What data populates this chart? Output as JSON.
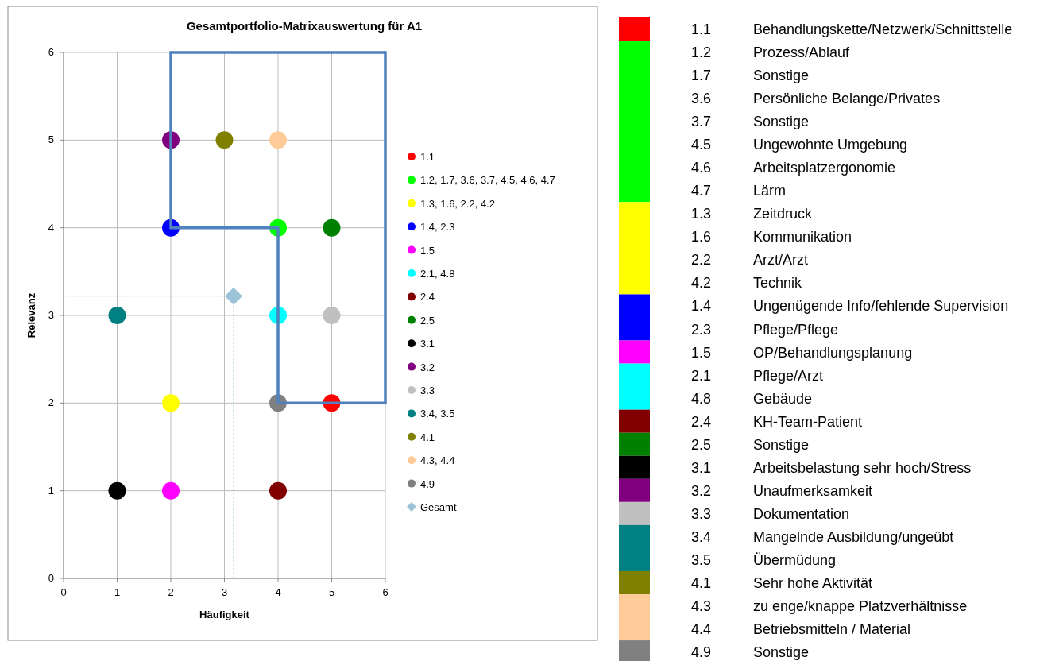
{
  "chart_data": [
    {
      "type": "scatter",
      "title": "Gesamtportfolio-Matrixauswertung für A1",
      "xlabel": "Häufigkeit",
      "ylabel": "Relevanz",
      "xlim": [
        0,
        6
      ],
      "ylim": [
        0,
        6
      ],
      "xticks": [
        0,
        1,
        2,
        3,
        4,
        5,
        6
      ],
      "yticks": [
        0,
        1,
        2,
        3,
        4,
        5,
        6
      ],
      "grid": true,
      "legend": "right",
      "marker": "circle",
      "series": [
        {
          "type": "line",
          "color": "#4f81bd",
          "marker": "none",
          "line_style": "solid",
          "x": [
            2,
            6
          ],
          "values": [
            6,
            6
          ],
          "errors": [
            [
              4,
              6
            ],
            [
              2,
              6
            ]
          ]
        },
        {
          "type": "step",
          "color": "#4f81bd",
          "marker": "none",
          "line_style": "solid",
          "x": [
            2,
            4,
            6
          ],
          "values": [
            4,
            2,
            2
          ]
        },
        {
          "name": "1.1",
          "color": "#ff0000",
          "x": [
            5
          ],
          "values": [
            2
          ]
        },
        {
          "name": "1.2, 1.7, 3.6, 3.7, 4.5, 4.6, 4.7",
          "color": "#00ff00",
          "x": [
            4
          ],
          "values": [
            4
          ]
        },
        {
          "name": "1.3, 1.6, 2.2, 4.2",
          "color": "#ffff00",
          "x": [
            2
          ],
          "values": [
            2
          ]
        },
        {
          "name": "1.4, 2.3",
          "color": "#0000ff",
          "x": [
            2
          ],
          "values": [
            4
          ]
        },
        {
          "name": "1.5",
          "color": "#ff00ff",
          "x": [
            2
          ],
          "values": [
            1
          ]
        },
        {
          "name": "2.1, 4.8",
          "color": "#00ffff",
          "x": [
            4
          ],
          "values": [
            3
          ]
        },
        {
          "name": "2.4",
          "color": "#800000",
          "x": [
            4
          ],
          "values": [
            1
          ]
        },
        {
          "name": "2.5",
          "color": "#008000",
          "x": [
            5
          ],
          "values": [
            4
          ]
        },
        {
          "name": "3.1",
          "color": "#000000",
          "x": [
            1
          ],
          "values": [
            1
          ]
        },
        {
          "name": "3.2",
          "color": "#800080",
          "x": [
            2
          ],
          "values": [
            5
          ]
        },
        {
          "name": "3.3",
          "color": "#c0c0c0",
          "x": [
            5
          ],
          "values": [
            3
          ]
        },
        {
          "name": "3.4, 3.5",
          "color": "#008080",
          "x": [
            1
          ],
          "values": [
            3
          ]
        },
        {
          "name": "4.1",
          "color": "#808000",
          "x": [
            3
          ],
          "values": [
            5
          ]
        },
        {
          "name": "4.3, 4.4",
          "color": "#ffcc99",
          "x": [
            4
          ],
          "values": [
            5
          ]
        },
        {
          "name": "4.9",
          "color": "#808080",
          "x": [
            4
          ],
          "values": [
            2
          ]
        },
        {
          "name": "Gesamt",
          "color": "#9dc3d8",
          "marker": "diamond",
          "x": [
            3.17
          ],
          "values": [
            3.22
          ],
          "errors": [
            [
              0,
              3.22
            ]
          ],
          "xerrors": [
            [
              0,
              3.17
            ]
          ]
        }
      ]
    },
    {
      "type": "other",
      "categories": [
        "1.1",
        "1.2",
        "1.7",
        "3.6",
        "3.7",
        "4.5",
        "4.6",
        "4.7",
        "1.3",
        "1.6",
        "2.2",
        "4.2",
        "1.4",
        "2.3",
        "1.5",
        "2.1",
        "4.8",
        "2.4",
        "2.5",
        "3.1",
        "3.2",
        "3.3",
        "3.4",
        "3.5",
        "4.1",
        "4.3",
        "4.4",
        "4.9"
      ],
      "y2_categories": [
        "Behandlungskette/Netzwerk/Schnittstelle",
        "Prozess/Ablauf",
        "Sonstige",
        "Persönliche Belange/Privates",
        "Sonstige",
        "Ungewohnte Umgebung",
        "Arbeitsplatzergonomie",
        "Lärm",
        "Zeitdruck",
        "Kommunikation",
        "Arzt/Arzt",
        "Technik",
        "Ungenügende Info/fehlende Supervision",
        "Pflege/Pflege",
        "OP/Behandlungsplanung",
        "Pflege/Arzt",
        "Gebäude",
        "KH-Team-Patient",
        "Sonstige",
        "Arbeitsbelastung sehr hoch/Stress",
        "Unaufmerksamkeit",
        "Dokumentation",
        "Mangelnde Ausbildung/ungeübt",
        "Übermüdung",
        "Sehr hohe Aktivität",
        "zu enge/knappe Platzverhältnisse",
        "Betriebsmitteln / Material",
        "Sonstige"
      ],
      "colors": [
        "#ff0000",
        "#00ff00",
        "#00ff00",
        "#00ff00",
        "#00ff00",
        "#00ff00",
        "#00ff00",
        "#00ff00",
        "#ffff00",
        "#ffff00",
        "#ffff00",
        "#ffff00",
        "#0000ff",
        "#0000ff",
        "#ff00ff",
        "#00ffff",
        "#00ffff",
        "#800000",
        "#008000",
        "#000000",
        "#800080",
        "#c0c0c0",
        "#008080",
        "#008080",
        "#808000",
        "#ffcc99",
        "#ffcc99",
        "#808080"
      ]
    }
  ]
}
